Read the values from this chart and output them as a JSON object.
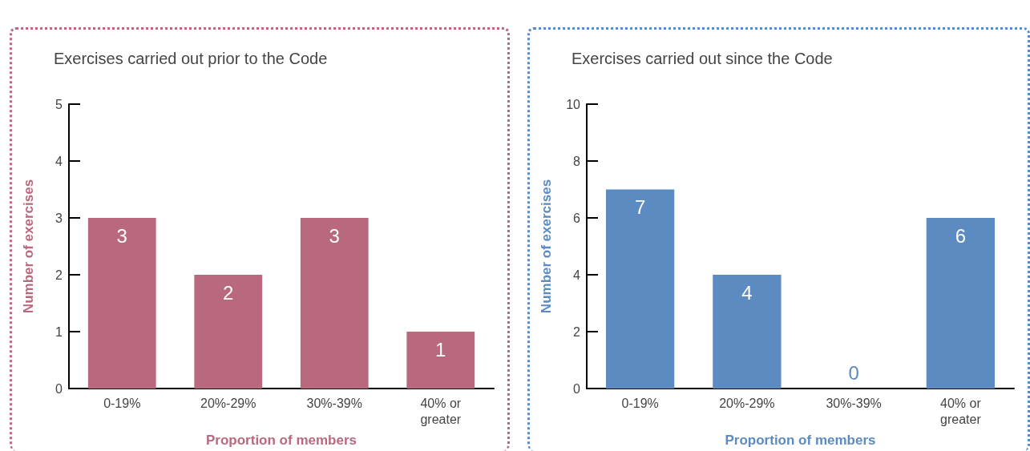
{
  "chart_data": [
    {
      "type": "bar",
      "title": "Exercises carried out prior to the Code",
      "xlabel": "Proportion of members",
      "ylabel": "Number of exercises",
      "categories": [
        "0-19%",
        "20%-29%",
        "30%-39%",
        "40% or\ngreater"
      ],
      "values": [
        3,
        2,
        3,
        1
      ],
      "color": "#b8697d",
      "ylim": [
        0,
        5
      ],
      "yticks": [
        0,
        1,
        2,
        3,
        4,
        5
      ],
      "data_labels": true
    },
    {
      "type": "bar",
      "title": "Exercises carried out since the Code",
      "xlabel": "Proportion of members",
      "ylabel": "Number of exercises",
      "categories": [
        "0-19%",
        "20%-29%",
        "30%-39%",
        "40% or\ngreater"
      ],
      "values": [
        7,
        4,
        0,
        6
      ],
      "color": "#5b8bc1",
      "ylim": [
        0,
        10
      ],
      "yticks": [
        0,
        2,
        4,
        6,
        8,
        10
      ],
      "data_labels": true
    }
  ]
}
